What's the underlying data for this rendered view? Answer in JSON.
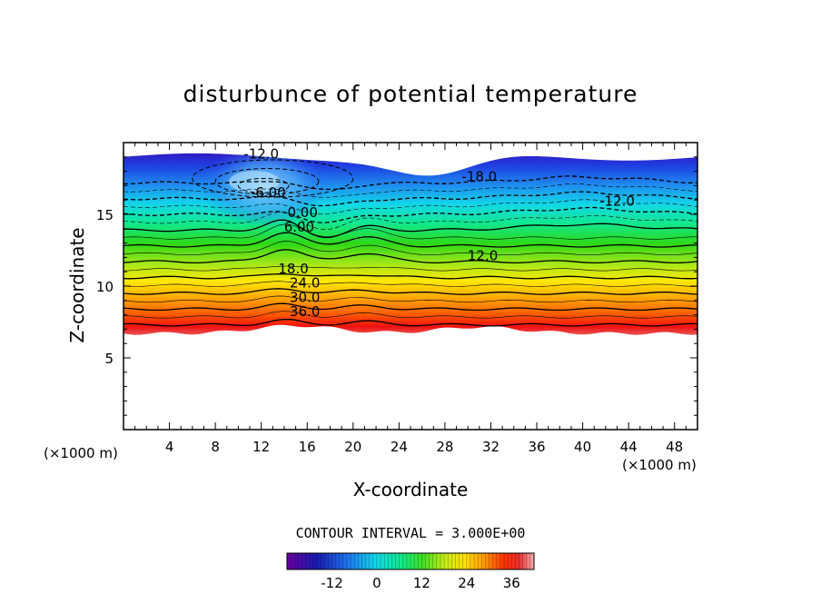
{
  "chart_data": {
    "type": "contour",
    "title": "disturbunce of potential temperature",
    "xlabel": "X-coordinate",
    "ylabel": "Z-coordinate",
    "x_unit": "(×1000 m)",
    "z_unit": "(×1000 m)",
    "xlim": [
      0,
      50
    ],
    "zlim": [
      0,
      20
    ],
    "x_ticks": [
      4,
      8,
      12,
      16,
      20,
      24,
      28,
      32,
      36,
      40,
      44,
      48
    ],
    "z_ticks": [
      5,
      10,
      15
    ],
    "contour_interval_text": "CONTOUR INTERVAL =  3.000E+00",
    "contour_interval": 3,
    "colorbar": {
      "min": -24,
      "max": 42,
      "tick_values": [
        -12,
        0,
        12,
        24,
        36
      ],
      "tick_labels": [
        "-12",
        "0",
        "12",
        "24",
        "36"
      ]
    },
    "contour_labels": [
      {
        "text": "-12.0",
        "x": 12.0,
        "z": 18.9
      },
      {
        "text": "-18.0",
        "x": 31.0,
        "z": 17.3
      },
      {
        "text": "-6.00",
        "x": 12.6,
        "z": 16.2
      },
      {
        "text": "-12.0",
        "x": 43.0,
        "z": 15.6
      },
      {
        "text": "0.00",
        "x": 15.6,
        "z": 14.8
      },
      {
        "text": "6.00",
        "x": 15.3,
        "z": 13.8
      },
      {
        "text": "12.0",
        "x": 31.3,
        "z": 11.8
      },
      {
        "text": "18.0",
        "x": 14.8,
        "z": 10.9
      },
      {
        "text": "24.0",
        "x": 15.8,
        "z": 9.9
      },
      {
        "text": "30.0",
        "x": 15.8,
        "z": 8.9
      },
      {
        "text": "36.0",
        "x": 15.8,
        "z": 7.9
      }
    ]
  }
}
